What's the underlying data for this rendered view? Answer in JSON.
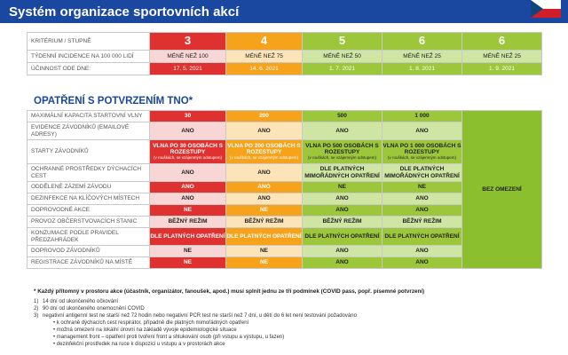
{
  "header": {
    "title": "Systém organizace sportovních akcí"
  },
  "levels": {
    "criterion_label": "KRITÉRIUM / STUPNĚ",
    "incidence_label": "TÝDENNÍ INCIDENCE NA 100 000 LIDÍ",
    "effective_label": "ÚČINNOST ODE DNE:",
    "cols": [
      {
        "level": "3",
        "incidence": "MÉNĚ NEŽ 100",
        "date": "17. 5. 2021",
        "color": "#e03131"
      },
      {
        "level": "4",
        "incidence": "MÉNĚ NEŽ 75",
        "date": "14. 6. 2021",
        "color": "#f6a21b"
      },
      {
        "level": "5",
        "incidence": "MÉNĚ NEŽ 50",
        "date": "1. 7. 2021",
        "color": "#9dc73b"
      },
      {
        "level": "6",
        "incidence": "MÉNĚ NEŽ 25",
        "date": "1. 8. 2021",
        "color": "#9dc73b"
      },
      {
        "level": "6",
        "incidence": "MÉNĚ NEŽ 25",
        "date": "1. 9. 2021",
        "color": "#9dc73b"
      }
    ]
  },
  "section_title": "OPATŘENÍ S POTVRZENÍM TNO*",
  "measures": {
    "no_limit": "BEZ OMEZENÍ",
    "rows": [
      {
        "label": "MAXIMÁLNÍ KAPACITA STARTOVNÍ VLNY",
        "vals": [
          "30",
          "200",
          "500",
          "1 000"
        ]
      },
      {
        "label": "EVIDENCE ZÁVODNÍKŮ (EMAILOVÉ ADRESY)",
        "vals": [
          "ANO",
          "ANO",
          "ANO",
          "ANO"
        ]
      },
      {
        "label": "STARTY ZÁVODNÍKŮ",
        "vals": [
          "VLNA PO 30 OSOBÁCH S ROZESTUPY",
          "VLNA PO 200 OSOBÁCH S ROZESTUPY",
          "VLNA PO 500 OSOBÁCH S ROZESTUPY",
          "VLNA PO 1 000 OSOBÁCH S ROZESTUPY"
        ],
        "notes": [
          "(v rouškách, se vzájemným odstupem)",
          "(v rouškách, se vzájemným odstupem)",
          "(v rouškách, se vzájemným odstupem)",
          "(v rouškách, se vzájemným odstupem)"
        ]
      },
      {
        "label": "OCHRANNÉ PROSTŘEDKY DÝCHACÍCH CEST",
        "vals": [
          "ANO",
          "ANO",
          "DLE PLATNÝCH MIMOŘÁDNÝCH OPATŘENÍ",
          "DLE PLATNÝCH MIMOŘÁDNÝCH OPATŘENÍ"
        ]
      },
      {
        "label": "ODDĚLENÉ ZÁZEMÍ ZÁVODU",
        "vals": [
          "ANO",
          "ANO",
          "NE",
          "NE"
        ]
      },
      {
        "label": "DEZINFEKCE NA KLÍČOVÝCH MÍSTECH",
        "vals": [
          "ANO",
          "ANO",
          "ANO",
          "ANO"
        ]
      },
      {
        "label": "DOPROVODNÉ AKCE",
        "vals": [
          "NE",
          "NE",
          "ANO",
          "ANO"
        ]
      },
      {
        "label": "PROVOZ OBČERSTVOVACÍCH STANIC",
        "vals": [
          "BĚŽNÝ REŽIM",
          "BĚŽNÝ REŽIM",
          "BĚŽNÝ REŽIM",
          "BĚŽNÝ REŽIM"
        ]
      },
      {
        "label": "KONZUMACE PODLE PRAVIDEL PŘEDZAHRÁDEK",
        "vals": [
          "DLE PLATNÝCH OPATŘENÍ",
          "DLE PLATNÝCH OPATŘENÍ",
          "DLE PLATNÝCH OPATŘENÍ",
          "DLE PLATNÝCH OPATŘENÍ"
        ]
      },
      {
        "label": "DOPROVOD ZÁVODNÍKŮ",
        "vals": [
          "NE",
          "NE",
          "ANO",
          "ANO"
        ]
      },
      {
        "label": "REGISTRACE ZÁVODNÍKŮ NA MÍSTĚ",
        "vals": [
          "NE",
          "NE",
          "ANO",
          "ANO"
        ]
      }
    ]
  },
  "footnote": {
    "star": "* Každý přítomný v prostoru akce (účastník, organizátor, fanoušek, apod.) musí splnit jednu ze tří podmínek (COVID pass, popř. písemné potvrzení)",
    "items": [
      {
        "num": "1)",
        "text": "14 dní od ukončeného očkování"
      },
      {
        "num": "2)",
        "text": "90 dní od ukončeného onemocnění COVID"
      },
      {
        "num": "3)",
        "text": "negativní antigenní test ne starší než 72 hodin nebo negativní PCR test ne starší než 7 dní, u dětí do 6 let není testování požadováno"
      }
    ],
    "bullets": [
      "• k ochraně dýchacích cest respirátor, případně dle platných mimořádných opatření",
      "• možná omezení na lokální úrovni na základě vývoje epidemiologické situace",
      "• management front – opatření proti tvoření front a shlukování osob (při vstupu a výstupu, u fazen)",
      "• dezinfekční prostředek na ruce k dispozici u vstupu a v prostorách akce"
    ]
  }
}
